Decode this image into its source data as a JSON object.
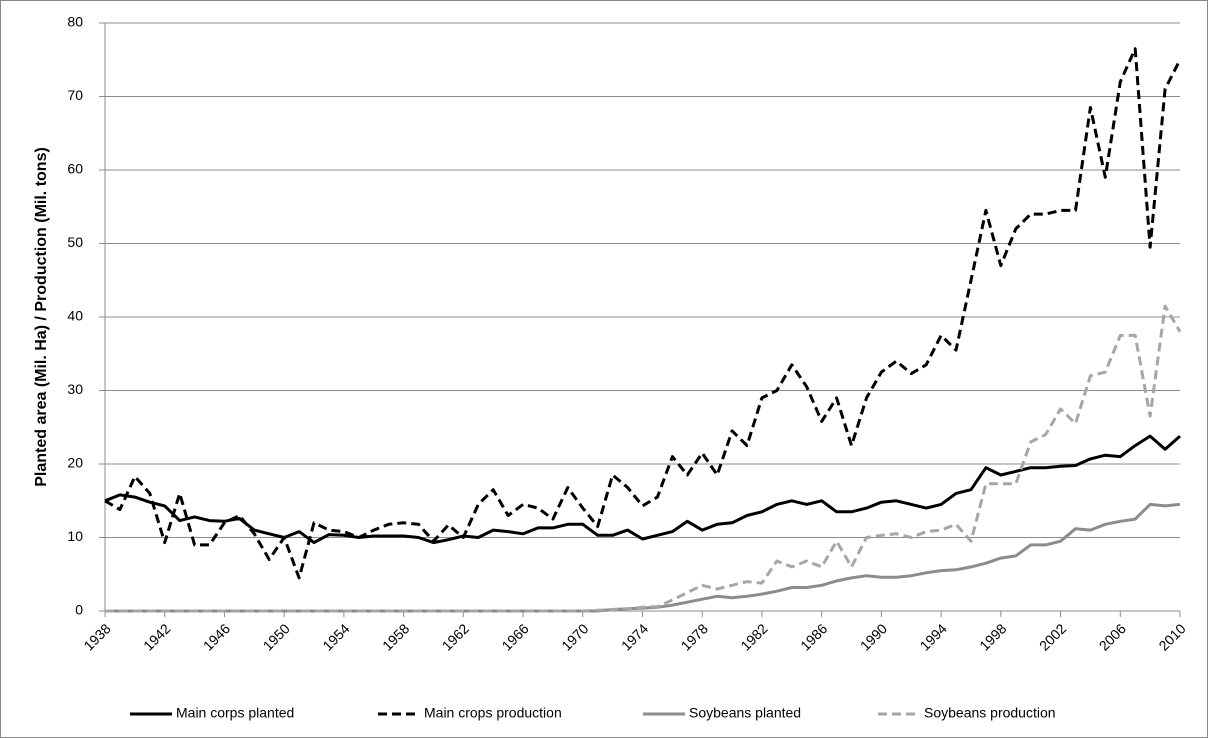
{
  "chart_data": {
    "type": "line",
    "y_label": "Planted area (Mil. Ha) / Production (Mil. tons)",
    "x": [
      1938,
      1939,
      1940,
      1941,
      1942,
      1943,
      1944,
      1945,
      1946,
      1947,
      1948,
      1949,
      1950,
      1951,
      1952,
      1953,
      1954,
      1955,
      1956,
      1957,
      1958,
      1959,
      1960,
      1961,
      1962,
      1963,
      1964,
      1965,
      1966,
      1967,
      1968,
      1969,
      1970,
      1971,
      1972,
      1973,
      1974,
      1975,
      1976,
      1977,
      1978,
      1979,
      1980,
      1981,
      1982,
      1983,
      1984,
      1985,
      1986,
      1987,
      1988,
      1989,
      1990,
      1991,
      1992,
      1993,
      1994,
      1995,
      1996,
      1997,
      1998,
      1999,
      2000,
      2001,
      2002,
      2003,
      2004,
      2005,
      2006,
      2007,
      2008,
      2009,
      2010
    ],
    "xlim": [
      1938,
      2010
    ],
    "xticks": [
      1938,
      1942,
      1946,
      1950,
      1954,
      1958,
      1962,
      1966,
      1970,
      1974,
      1978,
      1982,
      1986,
      1990,
      1994,
      1998,
      2002,
      2006,
      2010
    ],
    "ylim": [
      0,
      80
    ],
    "yticks": [
      0,
      10,
      20,
      30,
      40,
      50,
      60,
      70,
      80
    ],
    "grid": true,
    "legend": "bottom",
    "series": [
      {
        "name": "Main corps planted",
        "color": "#000000",
        "dash": false,
        "values": [
          15,
          15.8,
          15.5,
          14.8,
          14.3,
          12.3,
          12.8,
          12.3,
          12.2,
          12.6,
          11,
          10.5,
          10,
          10.8,
          9.3,
          10.4,
          10.3,
          10,
          10.2,
          10.2,
          10.2,
          10,
          9.3,
          9.7,
          10.2,
          10,
          11,
          10.8,
          10.5,
          11.3,
          11.3,
          11.8,
          11.8,
          10.3,
          10.3,
          11,
          9.8,
          10.3,
          10.8,
          12.2,
          11,
          11.8,
          12,
          13,
          13.5,
          14.5,
          15,
          14.5,
          15,
          13.5,
          13.5,
          14,
          14.8,
          15,
          14.5,
          14,
          14.5,
          16,
          16.5,
          19.5,
          18.5,
          19,
          19.5,
          19.5,
          19.7,
          19.8,
          20.7,
          21.2,
          21,
          22.5,
          23.8,
          22,
          23.8
        ]
      },
      {
        "name": "Main crops production",
        "color": "#000000",
        "dash": true,
        "values": [
          15,
          13.8,
          18.3,
          16,
          9.3,
          16,
          9,
          9,
          12,
          13,
          10.5,
          7,
          10,
          4.5,
          12,
          11,
          10.8,
          10,
          11,
          11.8,
          12,
          11.8,
          9.5,
          11.7,
          10,
          14.5,
          16.5,
          13,
          14.5,
          14,
          12.5,
          16.8,
          14,
          11.5,
          18.5,
          16.8,
          14.3,
          15.5,
          21,
          18.5,
          21.5,
          18.5,
          24.5,
          22.5,
          29,
          30,
          33.5,
          30.5,
          25.8,
          29,
          22.5,
          29,
          32.5,
          34,
          32.3,
          33.5,
          37.5,
          35.5,
          45,
          54.5,
          47,
          52,
          54,
          54,
          54.5,
          54.5,
          68.5,
          59,
          72,
          76.5,
          49.5,
          71,
          75
        ]
      },
      {
        "name": "Soybeans planted",
        "color": "#8c8c8c",
        "dash": false,
        "values": [
          0,
          0,
          0,
          0,
          0,
          0,
          0,
          0,
          0,
          0,
          0,
          0,
          0,
          0,
          0,
          0,
          0,
          0,
          0,
          0,
          0,
          0,
          0,
          0,
          0,
          0,
          0,
          0,
          0,
          0,
          0,
          0,
          0,
          0,
          0.2,
          0.3,
          0.4,
          0.5,
          0.8,
          1.2,
          1.6,
          2,
          1.8,
          2,
          2.3,
          2.7,
          3.2,
          3.2,
          3.5,
          4.1,
          4.5,
          4.8,
          4.6,
          4.6,
          4.8,
          5.2,
          5.5,
          5.6,
          6,
          6.5,
          7.2,
          7.5,
          9,
          9,
          9.5,
          11.2,
          11,
          11.8,
          12.2,
          12.5,
          14.5,
          14.3,
          14.5
        ]
      },
      {
        "name": "Soybeans production",
        "color": "#a6a6a6",
        "dash": true,
        "values": [
          0,
          0,
          0,
          0,
          0,
          0,
          0,
          0,
          0,
          0,
          0,
          0,
          0,
          0,
          0,
          0,
          0,
          0,
          0,
          0,
          0,
          0,
          0,
          0,
          0,
          0,
          0,
          0,
          0,
          0,
          0,
          0,
          0,
          0.1,
          0.2,
          0.3,
          0.5,
          0.6,
          1.5,
          2.5,
          3.5,
          3,
          3.5,
          4,
          3.8,
          6.8,
          6,
          6.8,
          6,
          9.5,
          6,
          10,
          10.3,
          10.5,
          10,
          10.8,
          11,
          11.8,
          9.5,
          17.3,
          17.3,
          17.3,
          23,
          24,
          27.5,
          25.5,
          32,
          32.5,
          37.5,
          37.5,
          26.5,
          41.5,
          38
        ]
      }
    ]
  }
}
